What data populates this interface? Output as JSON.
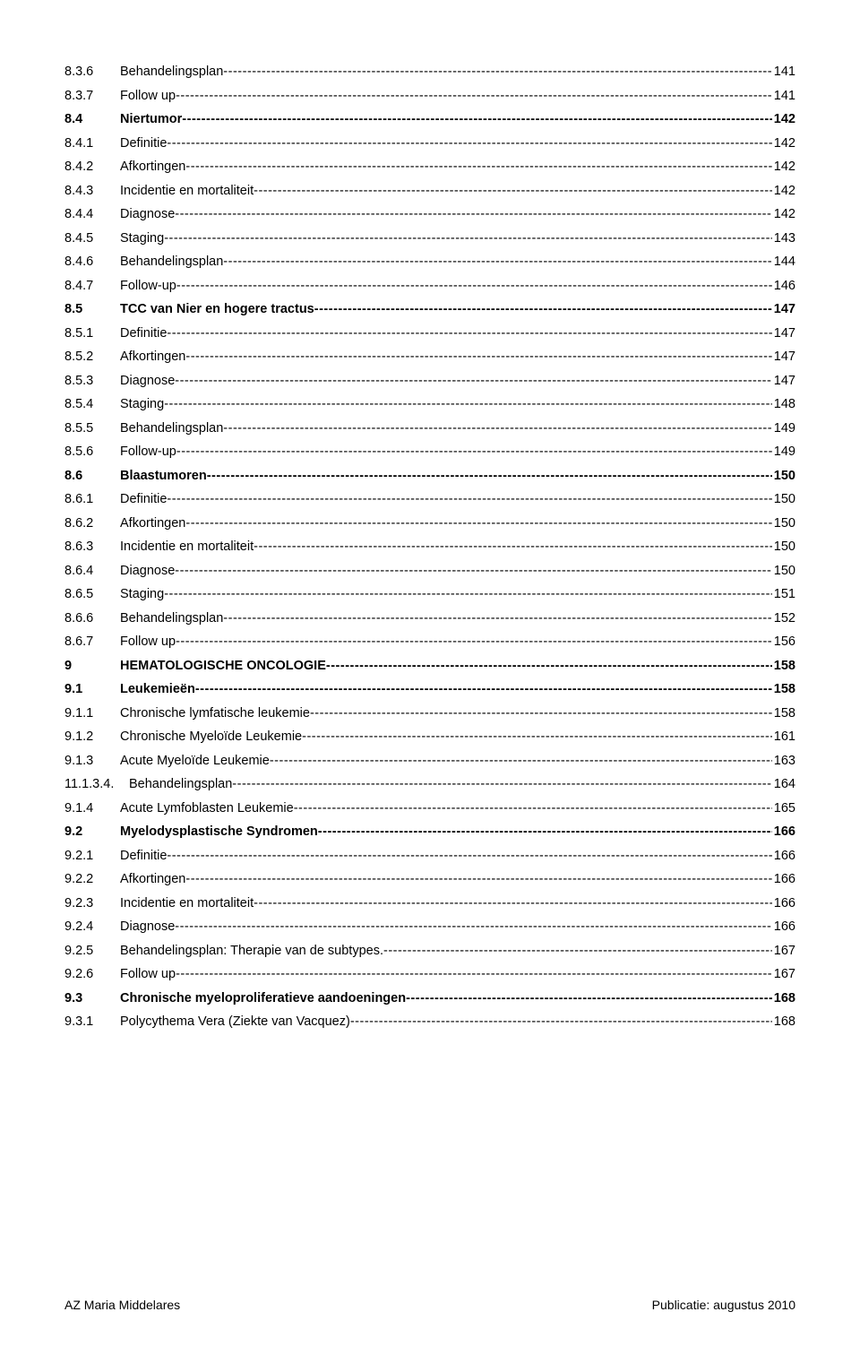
{
  "toc": [
    {
      "num": "8.3.6",
      "label": "Behandelingsplan",
      "page": "141",
      "bold": false
    },
    {
      "num": "8.3.7",
      "label": "Follow up",
      "page": "141",
      "bold": false
    },
    {
      "num": "8.4",
      "label": "Niertumor",
      "page": "142",
      "bold": true
    },
    {
      "num": "8.4.1",
      "label": "Definitie",
      "page": "142",
      "bold": false
    },
    {
      "num": "8.4.2",
      "label": "Afkortingen",
      "page": "142",
      "bold": false
    },
    {
      "num": "8.4.3",
      "label": "Incidentie en mortaliteit",
      "page": "142",
      "bold": false
    },
    {
      "num": "8.4.4",
      "label": "Diagnose",
      "page": "142",
      "bold": false
    },
    {
      "num": "8.4.5",
      "label": "Staging",
      "page": "143",
      "bold": false
    },
    {
      "num": "8.4.6",
      "label": "Behandelingsplan",
      "page": "144",
      "bold": false
    },
    {
      "num": "8.4.7",
      "label": "Follow-up",
      "page": "146",
      "bold": false
    },
    {
      "num": "8.5",
      "label": "TCC van Nier en hogere tractus",
      "page": "147",
      "bold": true
    },
    {
      "num": "8.5.1",
      "label": "Definitie",
      "page": "147",
      "bold": false
    },
    {
      "num": "8.5.2",
      "label": "Afkortingen",
      "page": "147",
      "bold": false
    },
    {
      "num": "8.5.3",
      "label": "Diagnose",
      "page": "147",
      "bold": false
    },
    {
      "num": "8.5.4",
      "label": "Staging",
      "page": "148",
      "bold": false
    },
    {
      "num": "8.5.5",
      "label": "Behandelingsplan",
      "page": "149",
      "bold": false
    },
    {
      "num": "8.5.6",
      "label": "Follow-up",
      "page": "149",
      "bold": false
    },
    {
      "num": "8.6",
      "label": "Blaastumoren",
      "page": "150",
      "bold": true
    },
    {
      "num": "8.6.1",
      "label": "Definitie",
      "page": "150",
      "bold": false
    },
    {
      "num": "8.6.2",
      "label": "Afkortingen",
      "page": "150",
      "bold": false
    },
    {
      "num": "8.6.3",
      "label": "Incidentie en mortaliteit",
      "page": "150",
      "bold": false
    },
    {
      "num": "8.6.4",
      "label": "Diagnose",
      "page": "150",
      "bold": false
    },
    {
      "num": "8.6.5",
      "label": "Staging",
      "page": "151",
      "bold": false
    },
    {
      "num": "8.6.6",
      "label": "Behandelingsplan",
      "page": "152",
      "bold": false
    },
    {
      "num": "8.6.7",
      "label": "Follow up",
      "page": "156",
      "bold": false
    },
    {
      "num": "9",
      "label": "HEMATOLOGISCHE ONCOLOGIE",
      "page": "158",
      "bold": true,
      "smallcaps": true
    },
    {
      "num": "9.1",
      "label": "Leukemieën",
      "page": "158",
      "bold": true
    },
    {
      "num": "9.1.1",
      "label": "Chronische lymfatische leukemie",
      "page": "158",
      "bold": false
    },
    {
      "num": "9.1.2",
      "label": "Chronische Myeloïde Leukemie",
      "page": "161",
      "bold": false
    },
    {
      "num": "9.1.3",
      "label": "Acute Myeloïde Leukemie",
      "page": "163",
      "bold": false
    },
    {
      "num": "11.1.3.4.",
      "label": "Behandelingsplan",
      "page": "164",
      "bold": false,
      "wide": true
    },
    {
      "num": "9.1.4",
      "label": "Acute Lymfoblasten Leukemie",
      "page": "165",
      "bold": false
    },
    {
      "num": "9.2",
      "label": "Myelodysplastische Syndromen",
      "page": "166",
      "bold": true
    },
    {
      "num": "9.2.1",
      "label": "Definitie",
      "page": "166",
      "bold": false
    },
    {
      "num": "9.2.2",
      "label": "Afkortingen",
      "page": "166",
      "bold": false
    },
    {
      "num": "9.2.3",
      "label": "Incidentie en mortaliteit",
      "page": "166",
      "bold": false
    },
    {
      "num": "9.2.4",
      "label": "Diagnose",
      "page": "166",
      "bold": false
    },
    {
      "num": "9.2.5",
      "label": "Behandelingsplan: Therapie van de subtypes.",
      "page": "167",
      "bold": false
    },
    {
      "num": "9.2.6",
      "label": "Follow up",
      "page": "167",
      "bold": false
    },
    {
      "num": "9.3",
      "label": "Chronische myeloproliferatieve aandoeningen",
      "page": "168",
      "bold": true
    },
    {
      "num": "9.3.1",
      "label": "Polycythema Vera (Ziekte van Vacquez)",
      "page": "168",
      "bold": false
    }
  ],
  "footer": {
    "left": "AZ Maria Middelares",
    "right": "Publicatie: augustus 2010"
  }
}
